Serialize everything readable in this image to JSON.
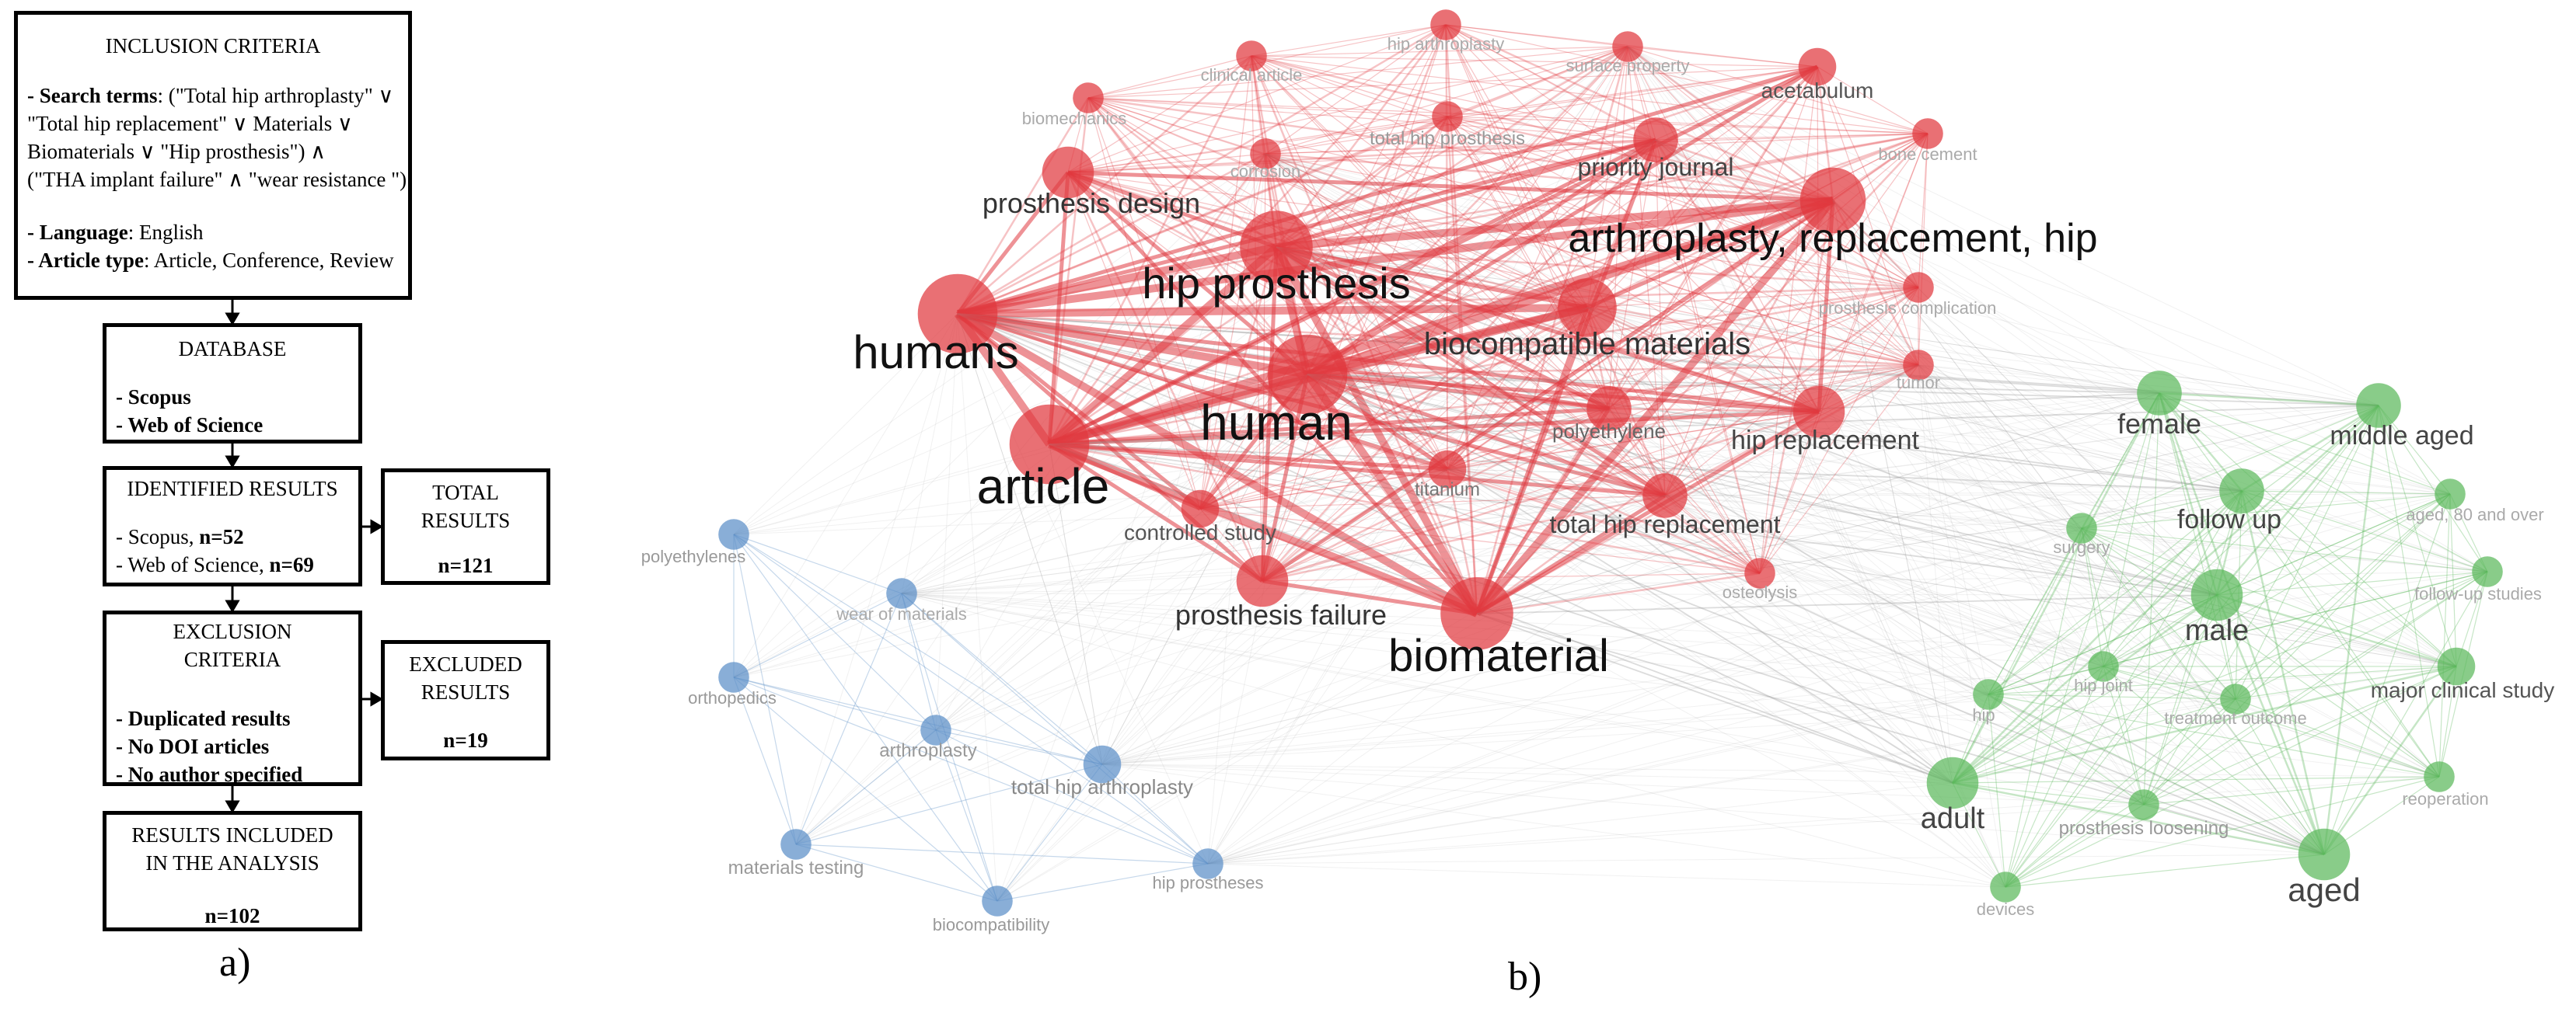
{
  "panel_a": {
    "label": "a)",
    "inclusion": {
      "title": "INCLUSION CRITERIA",
      "search_key": "- Search terms",
      "search_l1": ": (\"Total hip arthroplasty\" ∨",
      "search_l2": "\"Total hip replacement\" ∨ Materials ∨",
      "search_l3": "Biomaterials ∨ \"Hip prosthesis\")  ∧",
      "search_l4": "(\"THA implant failure\" ∧  \"wear resistance \")",
      "language_key": "- Language",
      "language_val": ": English",
      "type_key": "- Article type",
      "type_val": ": Article, Conference, Review"
    },
    "database": {
      "title": "DATABASE",
      "item1": "- Scopus",
      "item2": "- Web of Science"
    },
    "identified": {
      "title": "IDENTIFIED RESULTS",
      "scopus_label": "- Scopus, ",
      "scopus_n": "n=52",
      "wos_label": "- Web of Science, ",
      "wos_n": "n=69"
    },
    "total": {
      "title1": "TOTAL",
      "title2": "RESULTS",
      "n": "n=121"
    },
    "exclusion": {
      "title1": "EXCLUSION",
      "title2": "CRITERIA",
      "item1": "- Duplicated results",
      "item2": "- No DOI articles",
      "item3": "- No author specified"
    },
    "excluded": {
      "title1": "EXCLUDED",
      "title2": "RESULTS",
      "n": "n=19"
    },
    "included": {
      "title1": "RESULTS INCLUDED",
      "title2": "IN THE ANALYSIS",
      "n": "n=102"
    }
  },
  "panel_b": {
    "label": "b)",
    "colors": {
      "red": "#e0393f",
      "blue": "#5b8fc7",
      "green": "#5cb85c",
      "grey_edge": "#9a9a9a"
    },
    "nodes": [
      {
        "label": "humans",
        "cluster": "red",
        "weight": 9
      },
      {
        "label": "article",
        "cluster": "red",
        "weight": 9
      },
      {
        "label": "hip prosthesis",
        "cluster": "red",
        "weight": 8
      },
      {
        "label": "human",
        "cluster": "red",
        "weight": 9
      },
      {
        "label": "biomaterial",
        "cluster": "red",
        "weight": 8
      },
      {
        "label": "arthroplasty, replacement, hip",
        "cluster": "red",
        "weight": 7
      },
      {
        "label": "biocompatible materials",
        "cluster": "red",
        "weight": 6
      },
      {
        "label": "prosthesis design",
        "cluster": "red",
        "weight": 5
      },
      {
        "label": "prosthesis failure",
        "cluster": "red",
        "weight": 5
      },
      {
        "label": "priority journal",
        "cluster": "red",
        "weight": 4
      },
      {
        "label": "acetabulum",
        "cluster": "red",
        "weight": 3
      },
      {
        "label": "hip replacement",
        "cluster": "red",
        "weight": 5
      },
      {
        "label": "total hip replacement",
        "cluster": "red",
        "weight": 4
      },
      {
        "label": "polyethylene",
        "cluster": "red",
        "weight": 4
      },
      {
        "label": "controlled study",
        "cluster": "red",
        "weight": 3
      },
      {
        "label": "titanium",
        "cluster": "red",
        "weight": 3
      },
      {
        "label": "total hip prosthesis",
        "cluster": "red",
        "weight": 2
      },
      {
        "label": "hip arthroplasty",
        "cluster": "red",
        "weight": 2
      },
      {
        "label": "surface property",
        "cluster": "red",
        "weight": 2
      },
      {
        "label": "clinical article",
        "cluster": "red",
        "weight": 2
      },
      {
        "label": "biomechanics",
        "cluster": "red",
        "weight": 2
      },
      {
        "label": "corrosion",
        "cluster": "red",
        "weight": 2
      },
      {
        "label": "bone cement",
        "cluster": "red",
        "weight": 2
      },
      {
        "label": "prosthesis complication",
        "cluster": "red",
        "weight": 2
      },
      {
        "label": "tumor",
        "cluster": "red",
        "weight": 2
      },
      {
        "label": "osteolysis",
        "cluster": "red",
        "weight": 2
      },
      {
        "label": "polyethylenes",
        "cluster": "blue",
        "weight": 2
      },
      {
        "label": "wear of materials",
        "cluster": "blue",
        "weight": 2
      },
      {
        "label": "orthopedics",
        "cluster": "blue",
        "weight": 2
      },
      {
        "label": "arthroplasty",
        "cluster": "blue",
        "weight": 2
      },
      {
        "label": "total hip arthroplasty",
        "cluster": "blue",
        "weight": 3
      },
      {
        "label": "materials testing",
        "cluster": "blue",
        "weight": 2
      },
      {
        "label": "biocompatibility",
        "cluster": "blue",
        "weight": 2
      },
      {
        "label": "hip prostheses",
        "cluster": "blue",
        "weight": 2
      },
      {
        "label": "female",
        "cluster": "green",
        "weight": 4
      },
      {
        "label": "middle aged",
        "cluster": "green",
        "weight": 4
      },
      {
        "label": "follow up",
        "cluster": "green",
        "weight": 4
      },
      {
        "label": "male",
        "cluster": "green",
        "weight": 5
      },
      {
        "label": "aged, 80 and over",
        "cluster": "green",
        "weight": 2
      },
      {
        "label": "surgery",
        "cluster": "green",
        "weight": 2
      },
      {
        "label": "follow-up studies",
        "cluster": "green",
        "weight": 2
      },
      {
        "label": "major clinical study",
        "cluster": "green",
        "weight": 3
      },
      {
        "label": "hip",
        "cluster": "green",
        "weight": 2
      },
      {
        "label": "hip joint",
        "cluster": "green",
        "weight": 2
      },
      {
        "label": "treatment outcome",
        "cluster": "green",
        "weight": 2
      },
      {
        "label": "adult",
        "cluster": "green",
        "weight": 5
      },
      {
        "label": "prosthesis loosening",
        "cluster": "green",
        "weight": 2
      },
      {
        "label": "reoperation",
        "cluster": "green",
        "weight": 2
      },
      {
        "label": "aged",
        "cluster": "green",
        "weight": 5
      },
      {
        "label": "devices",
        "cluster": "green",
        "weight": 2
      }
    ]
  }
}
